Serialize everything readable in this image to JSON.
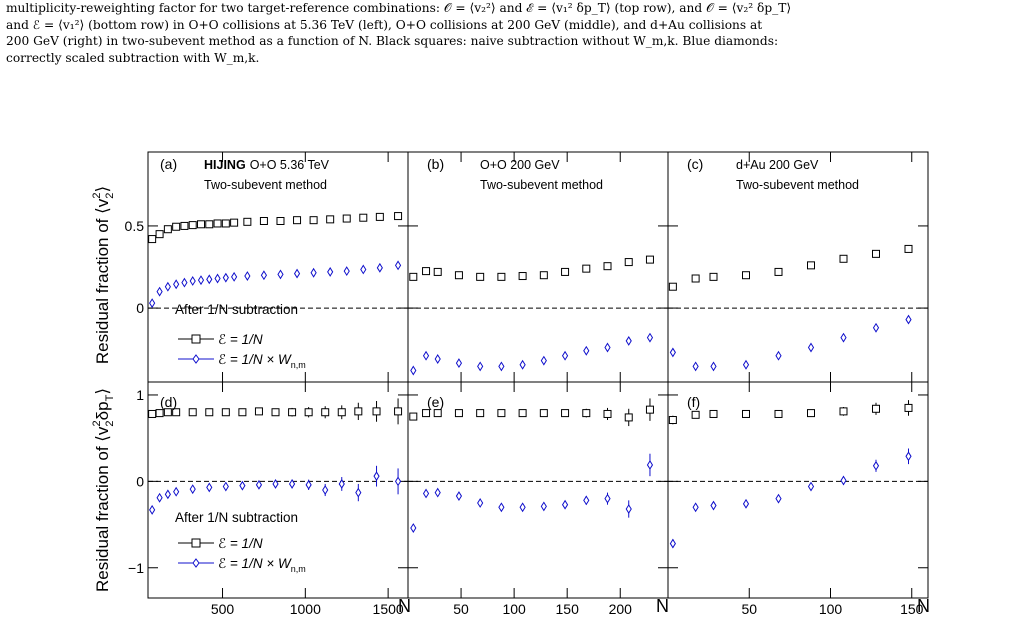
{
  "caption": {
    "lines": [
      "multiplicity-reweighting factor for two target-reference combinations: 𝒪 = ⟨v₂²⟩ and ℰ = ⟨v₁² δp_T⟩ (top row), and 𝒪 = ⟨v₂² δp_T⟩",
      "and ℰ = ⟨v₁²⟩ (bottom row) in O+O collisions at 5.36 TeV (left), O+O collisions at 200 GeV (middle), and d+Au collisions at",
      "200 GeV (right) in two-subevent method as a function of N. Black squares: naive subtraction without W_m,k. Blue diamonds:",
      "correctly scaled subtraction with W_m,k."
    ]
  },
  "colors": {
    "naive": "#000000",
    "weighted": "#1010cc",
    "axis": "#000000"
  },
  "legend": {
    "title": "After 1/N subtraction",
    "naive_label": "ℰ = 1/N",
    "weighted_label": "ℰ = 1/N × W",
    "weighted_sub": "n,m"
  },
  "panels_text": [
    {
      "tag": "(a)",
      "model": "HIJING",
      "system": "O+O 5.36 TeV",
      "method": "Two-subevent method"
    },
    {
      "tag": "(b)",
      "system": "O+O 200 GeV",
      "method": "Two-subevent method"
    },
    {
      "tag": "(c)",
      "system": "d+Au 200 GeV",
      "method": "Two-subevent method"
    },
    {
      "tag": "(d)"
    },
    {
      "tag": "(e)"
    },
    {
      "tag": "(f)"
    }
  ],
  "ylabels": {
    "top_main": "Residual fraction of ⟨v",
    "top_sub": "2",
    "top_sup": "2",
    "top_close": "⟩",
    "bottom_main": "Residual fraction of ⟨v",
    "bottom_sub": "2",
    "bottom_sup": "2",
    "bottom_mid": "δp",
    "bottom_sub2": "T",
    "bottom_close": "⟩"
  },
  "xlabel": "N",
  "chart_data": [
    {
      "type": "scatter",
      "panel": "a",
      "xlim": [
        50,
        1620
      ],
      "ylim": [
        -0.45,
        0.95
      ],
      "yticks": [
        0,
        0.5
      ],
      "yticklabels": [
        "0",
        "0.5"
      ],
      "xticks": [
        500,
        1000,
        1500
      ],
      "xticklabels": [
        "",
        "",
        ""
      ],
      "series": [
        {
          "key": "naive",
          "x": [
            75,
            120,
            170,
            220,
            270,
            320,
            370,
            420,
            470,
            520,
            570,
            650,
            750,
            850,
            950,
            1050,
            1150,
            1250,
            1350,
            1450,
            1560
          ],
          "y": [
            0.42,
            0.45,
            0.48,
            0.495,
            0.5,
            0.505,
            0.51,
            0.51,
            0.515,
            0.515,
            0.52,
            0.525,
            0.53,
            0.53,
            0.535,
            0.535,
            0.54,
            0.545,
            0.55,
            0.555,
            0.56
          ],
          "err": []
        },
        {
          "key": "weighted",
          "x": [
            75,
            120,
            170,
            220,
            270,
            320,
            370,
            420,
            470,
            520,
            570,
            650,
            750,
            850,
            950,
            1050,
            1150,
            1250,
            1350,
            1450,
            1560
          ],
          "y": [
            0.03,
            0.1,
            0.13,
            0.145,
            0.155,
            0.165,
            0.17,
            0.175,
            0.18,
            0.185,
            0.19,
            0.195,
            0.2,
            0.205,
            0.21,
            0.215,
            0.22,
            0.225,
            0.235,
            0.245,
            0.26
          ],
          "err": []
        }
      ]
    },
    {
      "type": "scatter",
      "panel": "b",
      "xlim": [
        0,
        245
      ],
      "ylim": [
        -0.45,
        0.95
      ],
      "yticks": [
        0,
        0.5
      ],
      "yticklabels": [],
      "xticks": [
        50,
        100,
        150,
        200
      ],
      "xticklabels": [
        "",
        "",
        "",
        ""
      ],
      "series": [
        {
          "key": "naive",
          "x": [
            5,
            17,
            28,
            48,
            68,
            88,
            108,
            128,
            148,
            168,
            188,
            208,
            228
          ],
          "y": [
            0.19,
            0.225,
            0.22,
            0.2,
            0.19,
            0.19,
            0.195,
            0.2,
            0.22,
            0.24,
            0.255,
            0.28,
            0.295
          ],
          "err": []
        },
        {
          "key": "weighted",
          "x": [
            5,
            17,
            28,
            48,
            68,
            88,
            108,
            128,
            148,
            168,
            188,
            208,
            228
          ],
          "y": [
            -0.38,
            -0.29,
            -0.31,
            -0.335,
            -0.355,
            -0.355,
            -0.345,
            -0.32,
            -0.29,
            -0.26,
            -0.24,
            -0.2,
            -0.18
          ],
          "err": []
        }
      ]
    },
    {
      "type": "scatter",
      "panel": "c",
      "xlim": [
        0,
        160
      ],
      "ylim": [
        -0.45,
        0.95
      ],
      "yticks": [
        0,
        0.5
      ],
      "yticklabels": [],
      "xticks": [
        50,
        100,
        150
      ],
      "xticklabels": [
        "",
        "",
        ""
      ],
      "series": [
        {
          "key": "naive",
          "x": [
            3,
            17,
            28,
            48,
            68,
            88,
            108,
            128,
            148
          ],
          "y": [
            0.13,
            0.18,
            0.19,
            0.2,
            0.22,
            0.26,
            0.3,
            0.33,
            0.36
          ],
          "err": []
        },
        {
          "key": "weighted",
          "x": [
            3,
            17,
            28,
            48,
            68,
            88,
            108,
            128,
            148
          ],
          "y": [
            -0.27,
            -0.355,
            -0.355,
            -0.345,
            -0.29,
            -0.24,
            -0.18,
            -0.12,
            -0.07
          ],
          "err": []
        }
      ]
    },
    {
      "type": "scatter",
      "panel": "d",
      "xlim": [
        50,
        1620
      ],
      "ylim": [
        -1.35,
        1.15
      ],
      "yticks": [
        -1,
        0,
        1
      ],
      "yticklabels": [
        "−1",
        "0",
        "1"
      ],
      "xticks": [
        500,
        1000,
        1500
      ],
      "xticklabels": [
        "500",
        "1000",
        "1500"
      ],
      "series": [
        {
          "key": "naive",
          "x": [
            75,
            120,
            170,
            220,
            320,
            420,
            520,
            620,
            720,
            820,
            920,
            1020,
            1120,
            1220,
            1320,
            1430,
            1560
          ],
          "y": [
            0.78,
            0.79,
            0.8,
            0.8,
            0.8,
            0.8,
            0.8,
            0.8,
            0.81,
            0.8,
            0.8,
            0.8,
            0.8,
            0.8,
            0.81,
            0.81,
            0.81
          ],
          "err": [
            0.04,
            0.03,
            0.03,
            0.03,
            0.03,
            0.03,
            0.03,
            0.03,
            0.04,
            0.04,
            0.05,
            0.06,
            0.07,
            0.08,
            0.1,
            0.12,
            0.15
          ]
        },
        {
          "key": "weighted",
          "x": [
            75,
            120,
            170,
            220,
            320,
            420,
            520,
            620,
            720,
            820,
            920,
            1020,
            1120,
            1220,
            1320,
            1430,
            1560
          ],
          "y": [
            -0.33,
            -0.19,
            -0.15,
            -0.12,
            -0.09,
            -0.07,
            -0.06,
            -0.05,
            -0.04,
            -0.03,
            -0.03,
            -0.04,
            -0.1,
            -0.03,
            -0.13,
            0.06,
            0.0
          ],
          "err": [
            0.04,
            0.03,
            0.03,
            0.03,
            0.03,
            0.03,
            0.03,
            0.03,
            0.04,
            0.04,
            0.05,
            0.06,
            0.07,
            0.08,
            0.1,
            0.12,
            0.15
          ]
        }
      ]
    },
    {
      "type": "scatter",
      "panel": "e",
      "xlim": [
        0,
        245
      ],
      "ylim": [
        -1.35,
        1.15
      ],
      "yticks": [
        -1,
        0,
        1
      ],
      "yticklabels": [],
      "xticks": [
        50,
        100,
        150,
        200
      ],
      "xticklabels": [
        "50",
        "100",
        "150",
        "200"
      ],
      "series": [
        {
          "key": "naive",
          "x": [
            5,
            17,
            28,
            48,
            68,
            88,
            108,
            128,
            148,
            168,
            188,
            208,
            228
          ],
          "y": [
            0.75,
            0.79,
            0.79,
            0.79,
            0.79,
            0.79,
            0.79,
            0.79,
            0.79,
            0.79,
            0.78,
            0.74,
            0.83
          ],
          "err": [
            0.04,
            0.03,
            0.03,
            0.03,
            0.03,
            0.03,
            0.03,
            0.04,
            0.04,
            0.05,
            0.07,
            0.1,
            0.13
          ]
        },
        {
          "key": "weighted",
          "x": [
            5,
            17,
            28,
            48,
            68,
            88,
            108,
            128,
            148,
            168,
            188,
            208,
            228
          ],
          "y": [
            -0.54,
            -0.14,
            -0.13,
            -0.17,
            -0.25,
            -0.3,
            -0.3,
            -0.29,
            -0.27,
            -0.22,
            -0.2,
            -0.32,
            0.19
          ],
          "err": [
            0.04,
            0.03,
            0.03,
            0.03,
            0.03,
            0.03,
            0.03,
            0.04,
            0.04,
            0.05,
            0.07,
            0.1,
            0.13
          ]
        }
      ]
    },
    {
      "type": "scatter",
      "panel": "f",
      "xlim": [
        0,
        160
      ],
      "ylim": [
        -1.35,
        1.15
      ],
      "yticks": [
        -1,
        0,
        1
      ],
      "yticklabels": [],
      "xticks": [
        50,
        100,
        150
      ],
      "xticklabels": [
        "50",
        "100",
        "150"
      ],
      "series": [
        {
          "key": "naive",
          "x": [
            3,
            17,
            28,
            48,
            68,
            88,
            108,
            128,
            148
          ],
          "y": [
            0.71,
            0.77,
            0.78,
            0.78,
            0.78,
            0.79,
            0.81,
            0.84,
            0.85
          ],
          "err": [
            0.05,
            0.03,
            0.03,
            0.03,
            0.03,
            0.04,
            0.05,
            0.07,
            0.09
          ]
        },
        {
          "key": "weighted",
          "x": [
            3,
            17,
            28,
            48,
            68,
            88,
            108,
            128,
            148
          ],
          "y": [
            -0.72,
            -0.3,
            -0.28,
            -0.26,
            -0.2,
            -0.06,
            0.01,
            0.18,
            0.29
          ],
          "err": [
            0.05,
            0.03,
            0.03,
            0.03,
            0.03,
            0.04,
            0.05,
            0.07,
            0.09
          ]
        }
      ]
    }
  ]
}
